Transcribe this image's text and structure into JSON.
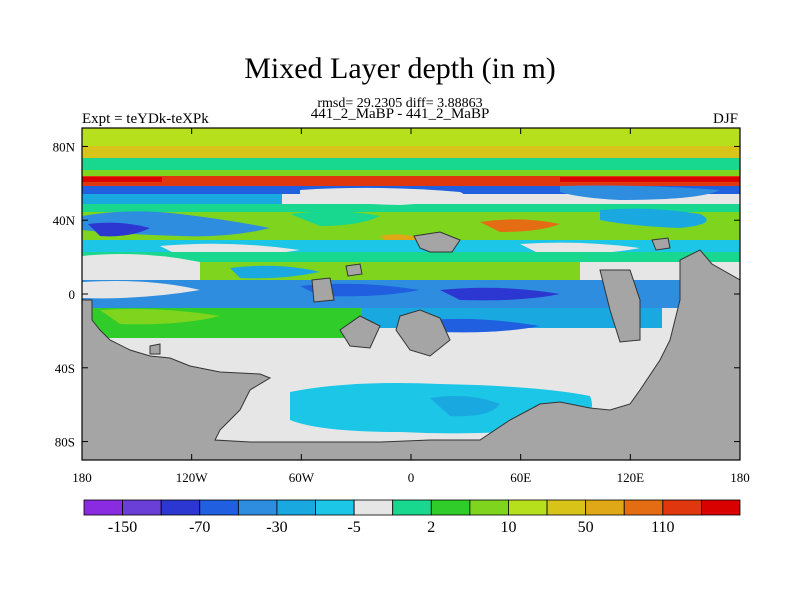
{
  "header": {
    "title": "Mixed Layer depth (in m)",
    "stats": "rmsd= 29.2305 diff= 3.88863",
    "experiment_pair": "441_2_MaBP - 441_2_MaBP",
    "expt_label": "Expt = teYDk-teXPk",
    "season": "DJF"
  },
  "map": {
    "lon_range": [
      -180,
      180
    ],
    "lat_range": [
      -90,
      90
    ],
    "x_ticks": [
      "180",
      "120W",
      "60W",
      "0",
      "60E",
      "120E",
      "180"
    ],
    "y_ticks": [
      "80N",
      "40N",
      "0",
      "40S",
      "80S"
    ],
    "land_color": "#a5a5a5",
    "missing_color": "#e6e6e6"
  },
  "colorbar": {
    "colors": [
      "#8a2be2",
      "#6a3fd8",
      "#2c36d0",
      "#1f5fe0",
      "#2f8de0",
      "#19a9e0",
      "#1cc6e6",
      "#e6e6e6",
      "#18d78e",
      "#2fcc2a",
      "#7fd41e",
      "#b7e01c",
      "#d8c419",
      "#e0a717",
      "#e46d13",
      "#e0370f",
      "#d90000"
    ],
    "labels": [
      "-150",
      "-70",
      "-30",
      "-5",
      "2",
      "10",
      "50",
      "110"
    ]
  }
}
